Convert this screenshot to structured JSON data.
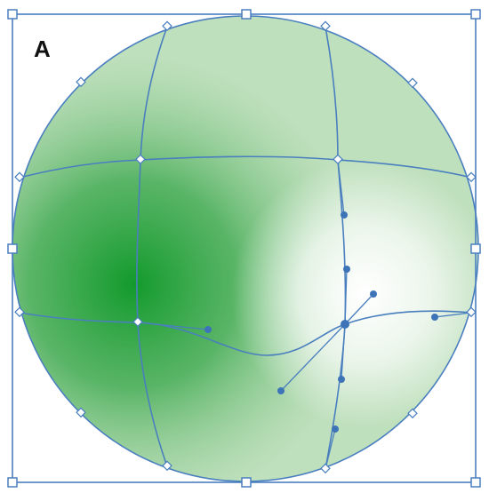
{
  "label": "A"
}
